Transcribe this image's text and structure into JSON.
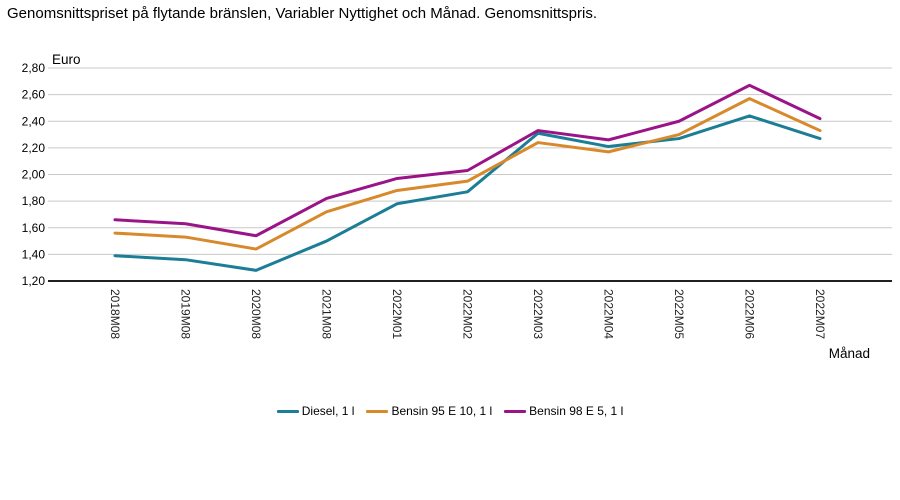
{
  "title": "Genomsnittspriset på flytande bränslen, Variabler Nyttighet och Månad. Genomsnittspris.",
  "chart_data": {
    "type": "line",
    "title": "Genomsnittspriset på flytande bränslen, Variabler Nyttighet och Månad. Genomsnittspris.",
    "y_unit_label": "Euro",
    "xlabel": "Månad",
    "ylim": [
      1.2,
      2.8
    ],
    "ytick_step": 0.2,
    "ytick_labels": [
      "1,20",
      "1,40",
      "1,60",
      "1,80",
      "2,00",
      "2,20",
      "2,40",
      "2,60",
      "2,80"
    ],
    "decimal_separator": ",",
    "grid": true,
    "legend_position": "bottom-center",
    "categories": [
      "2018M08",
      "2019M08",
      "2020M08",
      "2021M08",
      "2022M01",
      "2022M02",
      "2022M03",
      "2022M04",
      "2022M05",
      "2022M06",
      "2022M07"
    ],
    "series": [
      {
        "name": "Diesel, 1 l",
        "color": "#1B7E96",
        "values": [
          1.39,
          1.36,
          1.28,
          1.5,
          1.78,
          1.87,
          2.31,
          2.21,
          2.27,
          2.44,
          2.27
        ]
      },
      {
        "name": "Bensin 95 E 10, 1 l",
        "color": "#D7892B",
        "values": [
          1.56,
          1.53,
          1.44,
          1.72,
          1.88,
          1.95,
          2.24,
          2.17,
          2.3,
          2.57,
          2.33
        ]
      },
      {
        "name": "Bensin 98 E 5, 1 l",
        "color": "#9B1487",
        "values": [
          1.66,
          1.63,
          1.54,
          1.82,
          1.97,
          2.03,
          2.33,
          2.26,
          2.4,
          2.67,
          2.42
        ]
      }
    ],
    "colors": {
      "gridline": "#C9C9C9",
      "axis": "#000000",
      "text": "#000000"
    }
  }
}
